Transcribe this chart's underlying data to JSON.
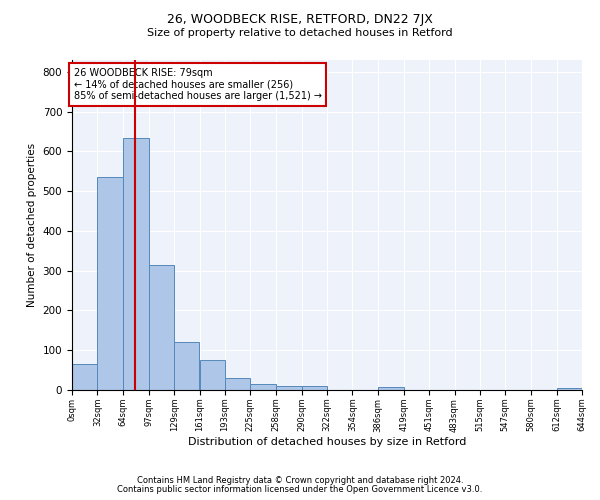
{
  "title": "26, WOODBECK RISE, RETFORD, DN22 7JX",
  "subtitle": "Size of property relative to detached houses in Retford",
  "xlabel": "Distribution of detached houses by size in Retford",
  "ylabel": "Number of detached properties",
  "footnote1": "Contains HM Land Registry data © Crown copyright and database right 2024.",
  "footnote2": "Contains public sector information licensed under the Open Government Licence v3.0.",
  "annotation_line1": "26 WOODBECK RISE: 79sqm",
  "annotation_line2": "← 14% of detached houses are smaller (256)",
  "annotation_line3": "85% of semi-detached houses are larger (1,521) →",
  "property_size": 79,
  "bar_edges": [
    0,
    32,
    64,
    97,
    129,
    161,
    193,
    225,
    258,
    290,
    322,
    354,
    386,
    419,
    451,
    483,
    515,
    547,
    580,
    612,
    644
  ],
  "bar_heights": [
    65,
    535,
    635,
    315,
    120,
    75,
    30,
    15,
    10,
    10,
    0,
    0,
    8,
    0,
    0,
    0,
    0,
    0,
    0,
    5
  ],
  "bar_color": "#aec6e8",
  "bar_edge_color": "#5588bb",
  "vline_color": "#cc0000",
  "vline_x": 79,
  "annotation_box_color": "#cc0000",
  "background_color": "#eef2fa",
  "ylim": [
    0,
    830
  ],
  "yticks": [
    0,
    100,
    200,
    300,
    400,
    500,
    600,
    700,
    800
  ]
}
